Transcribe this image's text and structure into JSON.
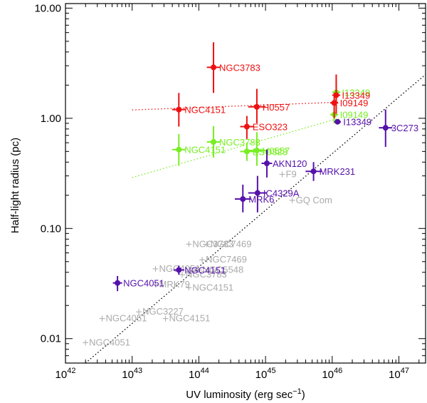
{
  "chart_data": {
    "type": "scatter",
    "title": "",
    "xlabel": "UV luminosity (erg sec⁻¹)",
    "ylabel": "Half-light radius (pc)",
    "xscale": "log",
    "yscale": "log",
    "xlim_log10": [
      42,
      47.4
    ],
    "ylim": [
      0.006,
      11
    ],
    "x_ticks": [
      {
        "log": 42,
        "base": "10",
        "exp": "42"
      },
      {
        "log": 43,
        "base": "10",
        "exp": "43"
      },
      {
        "log": 44,
        "base": "10",
        "exp": "44"
      },
      {
        "log": 45,
        "base": "10",
        "exp": "45"
      },
      {
        "log": 46,
        "base": "10",
        "exp": "46"
      },
      {
        "log": 47,
        "base": "10",
        "exp": "47"
      }
    ],
    "y_ticks": [
      {
        "value": 0.01,
        "label": "0.01"
      },
      {
        "value": 0.1,
        "label": "0.10"
      },
      {
        "value": 1,
        "label": "1.00"
      },
      {
        "value": 10,
        "label": "10.00"
      }
    ],
    "colors": {
      "red": "#ee1111",
      "green": "#77ee22",
      "purple": "#5511aa",
      "gray": "#aaaaaa",
      "black": "#000000"
    },
    "lines": [
      {
        "name": "red-fit",
        "color": "red",
        "x0_log": 43.0,
        "y0": 1.19,
        "x1_log": 46.1,
        "y1": 1.4
      },
      {
        "name": "green-fit",
        "color": "green",
        "x0_log": 43.0,
        "y0": 0.29,
        "x1_log": 46.1,
        "y1": 1.0
      },
      {
        "name": "black-fit",
        "color": "black",
        "x0_log": 42.3,
        "y0": 0.006,
        "x1_log": 47.4,
        "y1": 2.5
      }
    ],
    "series": [
      {
        "name": "red",
        "color": "red",
        "points": [
          {
            "label": "NGC3783",
            "x_log": 44.22,
            "y": 2.9,
            "ylo": 1.7,
            "yhi": 4.9,
            "xerr": 0.1,
            "label_side": "right"
          },
          {
            "label": "NGC4151",
            "x_log": 43.7,
            "y": 1.2,
            "ylo": 0.84,
            "yhi": 1.7,
            "xerr": 0.1,
            "label_side": "right"
          },
          {
            "label": "H0557",
            "x_log": 44.87,
            "y": 1.27,
            "ylo": 0.9,
            "yhi": 1.85,
            "xerr": 0.13,
            "label_side": "right"
          },
          {
            "label": "ESO323",
            "x_log": 44.72,
            "y": 0.84,
            "ylo": 0.65,
            "yhi": 1.05,
            "xerr": 0.1,
            "label_side": "right"
          },
          {
            "label": "I13349",
            "x_log": 46.06,
            "y": 1.62,
            "ylo": 1.1,
            "yhi": 2.5,
            "xerr": 0.06,
            "label_side": "right"
          },
          {
            "label": "I09149",
            "x_log": 46.03,
            "y": 1.38,
            "ylo": 1.0,
            "yhi": 1.7,
            "xerr": 0.06,
            "label_side": "right"
          }
        ]
      },
      {
        "name": "green",
        "color": "green",
        "points": [
          {
            "label": "NGC4151",
            "x_log": 43.7,
            "y": 0.52,
            "ylo": 0.37,
            "yhi": 0.72,
            "xerr": 0.1,
            "label_side": "right"
          },
          {
            "label": "NGC3783",
            "x_log": 44.22,
            "y": 0.61,
            "ylo": 0.44,
            "yhi": 0.85,
            "xerr": 0.1,
            "label_side": "right"
          },
          {
            "label": "ESO323",
            "x_log": 44.72,
            "y": 0.5,
            "ylo": 0.41,
            "yhi": 0.6,
            "xerr": 0.1,
            "label_side": "right"
          },
          {
            "label": "H0557",
            "x_log": 44.87,
            "y": 0.51,
            "ylo": 0.37,
            "yhi": 0.75,
            "xerr": 0.13,
            "label_side": "right"
          },
          {
            "label": "I13349",
            "x_log": 46.06,
            "y": 1.72,
            "ylo": 1.4,
            "yhi": 2.1,
            "xerr": 0.06,
            "label_side": "right"
          },
          {
            "label": "I09149",
            "x_log": 46.03,
            "y": 1.08,
            "ylo": 0.9,
            "yhi": 1.3,
            "xerr": 0.06,
            "label_side": "right"
          }
        ]
      },
      {
        "name": "purple",
        "color": "purple",
        "points": [
          {
            "label": "NGC4051",
            "x_log": 42.78,
            "y": 0.032,
            "ylo": 0.027,
            "yhi": 0.037,
            "xerr": 0.07,
            "label_side": "right"
          },
          {
            "label": "NGC4151",
            "x_log": 43.7,
            "y": 0.042,
            "ylo": 0.038,
            "yhi": 0.046,
            "xerr": 0.08,
            "label_side": "right"
          },
          {
            "label": "MRK6",
            "x_log": 44.66,
            "y": 0.185,
            "ylo": 0.14,
            "yhi": 0.25,
            "xerr": 0.12,
            "label_side": "right"
          },
          {
            "label": "IC4329A",
            "x_log": 44.88,
            "y": 0.21,
            "ylo": 0.14,
            "yhi": 0.3,
            "xerr": 0.14,
            "label_side": "right"
          },
          {
            "label": "AKN120",
            "x_log": 45.02,
            "y": 0.39,
            "ylo": 0.29,
            "yhi": 0.52,
            "xerr": 0.08,
            "label_side": "right"
          },
          {
            "label": "MRK231",
            "x_log": 45.72,
            "y": 0.33,
            "ylo": 0.27,
            "yhi": 0.4,
            "xerr": 0.12,
            "label_side": "right"
          },
          {
            "label": "I13349",
            "x_log": 46.08,
            "y": 0.93,
            "ylo": 0.88,
            "yhi": 0.98,
            "xerr": 0.05,
            "label_side": "right"
          },
          {
            "label": "3C273",
            "x_log": 46.8,
            "y": 0.82,
            "ylo": 0.55,
            "yhi": 1.2,
            "xerr": 0.1,
            "label_side": "right"
          }
        ]
      },
      {
        "name": "gray",
        "color": "gray",
        "marker": "plus",
        "points": [
          {
            "label": "NGC4051",
            "x_log": 42.3,
            "y": 0.0092,
            "label_side": "right"
          },
          {
            "label": "NGC4051",
            "x_log": 42.55,
            "y": 0.0152,
            "label_side": "right"
          },
          {
            "label": "NGC3227",
            "x_log": 43.1,
            "y": 0.0175,
            "label_side": "right"
          },
          {
            "label": "NGC4151",
            "x_log": 43.5,
            "y": 0.0152,
            "label_side": "right"
          },
          {
            "label": "NGC3783",
            "x_log": 43.85,
            "y": 0.072,
            "label_side": "right"
          },
          {
            "label": "NGC7469",
            "x_log": 44.12,
            "y": 0.072,
            "label_side": "right"
          },
          {
            "label": "NGC7469",
            "x_log": 44.05,
            "y": 0.052,
            "label_side": "right"
          },
          {
            "label": "NGC4051",
            "x_log": 43.35,
            "y": 0.043,
            "label_side": "right"
          },
          {
            "label": "NGC3783",
            "x_log": 43.75,
            "y": 0.038,
            "label_side": "right"
          },
          {
            "label": "NGC5548",
            "x_log": 44.0,
            "y": 0.042,
            "label_side": "right"
          },
          {
            "label": "MRK79",
            "x_log": 43.35,
            "y": 0.031,
            "label_side": "right"
          },
          {
            "label": "NGC4151",
            "x_log": 43.85,
            "y": 0.029,
            "label_side": "right"
          },
          {
            "label": "F9",
            "x_log": 45.25,
            "y": 0.31,
            "label_side": "right"
          },
          {
            "label": "GQ Com",
            "x_log": 45.4,
            "y": 0.18,
            "label_side": "right"
          }
        ]
      }
    ]
  }
}
